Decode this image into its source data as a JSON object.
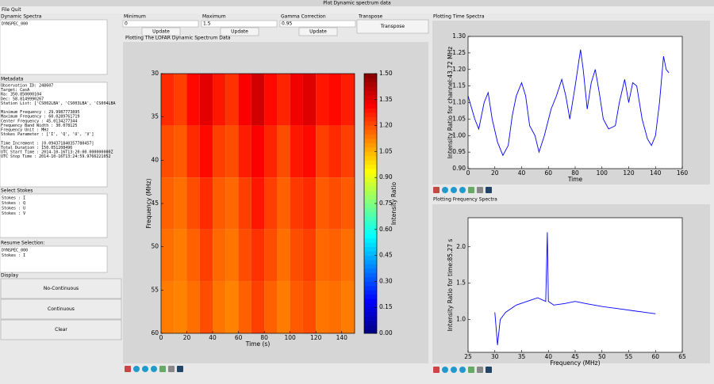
{
  "window": {
    "title": "Plot Dynamic spectrum data",
    "menu": [
      "File",
      "Quit"
    ]
  },
  "left": {
    "dynamic_spectra": {
      "label": "Dynamic Spectra",
      "items": [
        "DYNSPEC_000"
      ]
    },
    "metadata": {
      "label": "Metadata",
      "blocks": [
        [
          "Observation ID: 248607",
          "Target: CasA",
          "Ra: 350.850000104",
          "Dec: 58.8149990267",
          "Station List: ['CS002LBA', 'CS003LBA', 'CS004LBA"
        ],
        [
          "Minimum Frequency : 29.9987773895",
          "Maximum Frequency : 60.0289761719",
          "Center Frequency : 45.0134277344",
          "Frequency Band Width : 30.078125",
          "Frequency Unit : MHz",
          "Stokes Parameter : ['I', 'Q', 'U', 'V']"
        ],
        [
          "Time Increment : [0.094371840357780457]",
          "Total Duration : 150.051208496",
          "UTC Start Time : 2014-10-16T13:20:00.000000000Z",
          "UTC Stop Time : 2014-10-16T13:24:59.9766221052"
        ]
      ]
    },
    "stokes": {
      "label": "Select Stokes",
      "items": [
        "Stokes : I",
        "Stokes : Q",
        "Stokes : U",
        "Stokes : V"
      ]
    },
    "resume": {
      "label": "Resume Selection:",
      "items": [
        "DYNSPEC_000",
        "Stokes : I"
      ]
    },
    "display": {
      "label": "Display",
      "buttons": [
        "No-Continuous",
        "Continuous",
        "Clear"
      ]
    }
  },
  "controls": [
    {
      "label": "Minimum",
      "value": "0",
      "button": "Update"
    },
    {
      "label": "Maximum",
      "value": "1.5",
      "button": "Update"
    },
    {
      "label": "Gamma Correction",
      "value": "0.95",
      "button": "Update"
    }
  ],
  "transpose": {
    "label": "Transpose",
    "button": "Transpose"
  },
  "chart_data": [
    {
      "type": "heatmap",
      "title": "Plotting The LOFAR Dynamic Spectrum Data",
      "xlabel": "Time (s)",
      "ylabel": "Frequency (MHz)",
      "x": [
        5,
        15,
        25,
        35,
        45,
        55,
        65,
        75,
        85,
        95,
        105,
        115,
        125,
        135,
        145
      ],
      "y": [
        33,
        39,
        45,
        51,
        57
      ],
      "z": [
        [
          1.25,
          1.22,
          1.3,
          1.35,
          1.28,
          1.24,
          1.32,
          1.38,
          1.3,
          1.26,
          1.33,
          1.36,
          1.28,
          1.3,
          1.27
        ],
        [
          1.2,
          1.18,
          1.25,
          1.3,
          1.22,
          1.2,
          1.27,
          1.32,
          1.26,
          1.2,
          1.28,
          1.3,
          1.22,
          1.25,
          1.22
        ],
        [
          1.17,
          1.15,
          1.2,
          1.25,
          1.18,
          1.16,
          1.22,
          1.28,
          1.22,
          1.17,
          1.23,
          1.25,
          1.18,
          1.2,
          1.18
        ],
        [
          1.15,
          1.13,
          1.17,
          1.22,
          1.16,
          1.14,
          1.2,
          1.24,
          1.2,
          1.15,
          1.2,
          1.22,
          1.16,
          1.17,
          1.15
        ],
        [
          1.13,
          1.12,
          1.15,
          1.2,
          1.14,
          1.12,
          1.17,
          1.22,
          1.17,
          1.13,
          1.18,
          1.2,
          1.14,
          1.15,
          1.13
        ]
      ],
      "xlim": [
        0,
        150
      ],
      "xticks": [
        0,
        20,
        40,
        60,
        80,
        100,
        120,
        140
      ],
      "ylim": [
        60,
        30
      ],
      "yticks": [
        30,
        35,
        40,
        45,
        50,
        55,
        60
      ],
      "colorbar": {
        "label": "Intensity Ratio",
        "clim": [
          0,
          1.5
        ],
        "cmap": "jet",
        "ticks": [
          {
            "value": 0,
            "label": "0.00"
          },
          0.15,
          {
            "value": 0.3,
            "label": "0.30"
          },
          0.45,
          {
            "value": 0.6,
            "label": "0.60"
          },
          0.75,
          {
            "value": 0.9,
            "label": "0.90"
          },
          1.05,
          {
            "value": 1.2,
            "label": "1.20"
          },
          1.35,
          {
            "value": 1.5,
            "label": "1.50"
          }
        ]
      }
    },
    {
      "type": "line",
      "title": "Plotting Time Spectra",
      "xlabel": "Time",
      "ylabel": "Intensity Ratio for channel:43.72 MHz",
      "color": "#0000ff",
      "x": [
        0,
        5,
        8,
        12,
        15,
        18,
        22,
        26,
        30,
        33,
        36,
        40,
        43,
        46,
        50,
        53,
        57,
        62,
        66,
        70,
        73,
        76,
        80,
        84,
        86,
        89,
        92,
        95,
        98,
        101,
        105,
        110,
        113,
        117,
        120,
        123,
        126,
        130,
        134,
        137,
        140,
        143,
        146,
        148,
        150
      ],
      "values": [
        1.12,
        1.05,
        1.02,
        1.1,
        1.13,
        1.05,
        0.98,
        0.94,
        0.97,
        1.06,
        1.12,
        1.16,
        1.12,
        1.03,
        1.0,
        0.95,
        1.0,
        1.08,
        1.12,
        1.17,
        1.12,
        1.05,
        1.15,
        1.26,
        1.2,
        1.08,
        1.16,
        1.2,
        1.13,
        1.05,
        1.02,
        1.03,
        1.1,
        1.17,
        1.1,
        1.16,
        1.15,
        1.05,
        0.99,
        0.97,
        1.0,
        1.1,
        1.24,
        1.2,
        1.19
      ],
      "xlim": [
        0,
        160
      ],
      "xticks": [
        0,
        20,
        40,
        60,
        80,
        100,
        120,
        140,
        160
      ],
      "ylim": [
        0.9,
        1.3
      ],
      "yticks": [
        {
          "value": 0.9,
          "label": "0.90"
        },
        0.95,
        {
          "value": 1.0,
          "label": "1.00"
        },
        1.05,
        {
          "value": 1.1,
          "label": "1.10"
        },
        1.15,
        {
          "value": 1.2,
          "label": "1.20"
        },
        1.25,
        {
          "value": 1.3,
          "label": "1.30"
        }
      ]
    },
    {
      "type": "line",
      "title": "Plotting Frequency Spectra",
      "xlabel": "Frequency (MHz)",
      "ylabel": "Intensity Ratio for time:85.27 s",
      "color": "#0000ff",
      "x": [
        30,
        30.5,
        31,
        32,
        34,
        36,
        38,
        39.5,
        39.8,
        40,
        41,
        43,
        45,
        47,
        50,
        53,
        56,
        58,
        60
      ],
      "values": [
        1.1,
        0.65,
        1.0,
        1.1,
        1.2,
        1.25,
        1.3,
        1.25,
        2.2,
        1.25,
        1.2,
        1.22,
        1.25,
        1.22,
        1.18,
        1.15,
        1.12,
        1.1,
        1.08
      ],
      "xlim": [
        25,
        65
      ],
      "xticks": [
        25,
        30,
        35,
        40,
        45,
        50,
        55,
        60,
        65
      ],
      "ylim": [
        0.55,
        2.4
      ],
      "yticks": [
        {
          "value": 1.0,
          "label": "1.0"
        },
        1.5,
        {
          "value": 2.0,
          "label": "2.0"
        }
      ]
    }
  ]
}
